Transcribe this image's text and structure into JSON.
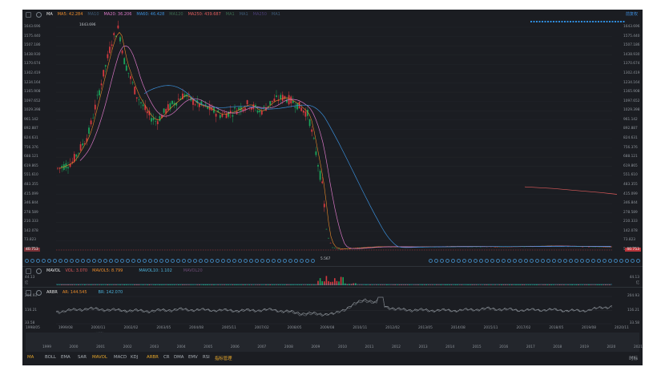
{
  "ma_bar": {
    "name": "MA",
    "ma5": "MA5: 42.284",
    "ma10": "MA10",
    "ma20": "MA20: 36.206",
    "ma60": "MA60: 46.428",
    "ma120": "MA120",
    "ma250": "MA250: 439.687",
    "ma_a": "MA1",
    "ma_b": "MA1",
    "ma_c": "MA250",
    "ma_d": "MA1",
    "top_right": "前复权"
  },
  "price_axis": [
    "1643.696",
    "1575.440",
    "1507.186",
    "1438.930",
    "1370.674",
    "1302.419",
    "1234.164",
    "1165.908",
    "1097.652",
    "1029.398",
    "961.142",
    "892.887",
    "824.631",
    "756.376",
    "688.121",
    "619.865",
    "551.610",
    "483.355",
    "415.099",
    "346.844",
    "278.589",
    "210.333",
    "142.078",
    "73.823",
    "5.567"
  ],
  "price_axis_right": [
    "1643.696",
    "1575.440",
    "1507.186",
    "1438.930",
    "1370.674",
    "1302.419",
    "1234.164",
    "1165.908",
    "1097.652",
    "1029.398",
    "961.142",
    "892.887",
    "824.631",
    "756.376",
    "688.121",
    "619.865",
    "551.610",
    "483.355",
    "415.099",
    "346.844",
    "278.589",
    "210.333",
    "142.078",
    "73.823",
    "5.567"
  ],
  "annotations": {
    "high": "1643.696",
    "low": "5.567",
    "last_badge": "40.753"
  },
  "vol_bar": {
    "name": "MAVOL",
    "vol": "VOL: 3.070",
    "mavol5": "MAVOL5: 8.799",
    "mavol10": "MAVOL10: 1.102",
    "mavol20": "MAVOL20"
  },
  "vol_axis": [
    "44.13",
    "亿"
  ],
  "arbr_bar": {
    "name": "ARBR",
    "ar": "AR: 144.545",
    "br": "BR: 142.070"
  },
  "arbr_axis": [
    "204.93",
    "116.21",
    "33.58"
  ],
  "date_axis": [
    "1998/05",
    "1999/08",
    "2000/11",
    "2002/02",
    "2003/05",
    "2004/08",
    "2005/11",
    "2007/02",
    "2008/05",
    "2009/08",
    "2010/11",
    "2012/02",
    "2013/05",
    "2014/08",
    "2015/11",
    "2017/02",
    "2018/05",
    "2019/08",
    "2020/11"
  ],
  "overview_years": [
    "1999",
    "2000",
    "2001",
    "2002",
    "2003",
    "2004",
    "2005",
    "2006",
    "2007",
    "2008",
    "2009",
    "2010",
    "2011",
    "2012",
    "2013",
    "2014",
    "2015",
    "2016",
    "2017",
    "2018",
    "2019",
    "2020",
    "2021"
  ],
  "tabs": [
    "MA",
    "BOLL",
    "EMA",
    "SAR",
    "MAVOL",
    "MACD",
    "KDJ",
    "ARBR",
    "CR",
    "DMA",
    "EMV",
    "RSI",
    "指标管理"
  ],
  "bottom_right": "时标",
  "colors": {
    "bg": "#1b1d22",
    "up": "#d6393f",
    "down": "#1aa35a",
    "ma5": "#e88a2a",
    "ma20": "#d776c4",
    "ma60": "#3a8ed8",
    "ma250": "#e05c5c",
    "accent": "#e3a52b"
  },
  "chart_data": [
    {
      "type": "line",
      "title": "",
      "x": [
        "1998/05",
        "1999/08",
        "2000/11",
        "2002/02",
        "2003/05",
        "2004/08",
        "2005/11",
        "2007/02",
        "2008/05",
        "2009/08",
        "2010/11",
        "2012/02",
        "2013/05",
        "2014/08",
        "2015/11",
        "2017/02",
        "2018/05",
        "2019/08",
        "2020/11"
      ],
      "series": [
        {
          "name": "K-line close (approx)",
          "values": [
            700,
            1250,
            1480,
            950,
            1080,
            1100,
            1030,
            1160,
            40,
            20,
            25,
            30,
            28,
            32,
            35,
            30,
            32,
            35,
            40
          ]
        },
        {
          "name": "MA60",
          "values": [
            null,
            900,
            1300,
            1050,
            1060,
            1120,
            1050,
            1080,
            650,
            150,
            30,
            28,
            28,
            30,
            32,
            31,
            31,
            33,
            38
          ]
        },
        {
          "name": "MA250",
          "values": [
            null,
            null,
            null,
            null,
            null,
            null,
            null,
            null,
            null,
            null,
            null,
            null,
            null,
            null,
            null,
            null,
            470,
            445,
            420
          ]
        }
      ],
      "ylim": [
        5.567,
        1643.696
      ]
    },
    {
      "type": "line",
      "title": "ARBR",
      "x": [
        "1998/05",
        "1999/08",
        "2000/11",
        "2002/02",
        "2003/05",
        "2004/08",
        "2005/11",
        "2007/02",
        "2008/05",
        "2009/08",
        "2010/11",
        "2012/02",
        "2013/05",
        "2014/08",
        "2015/11",
        "2017/02",
        "2018/05",
        "2019/08",
        "2020/11"
      ],
      "series": [
        {
          "name": "AR",
          "values": [
            110,
            130,
            120,
            115,
            125,
            120,
            118,
            122,
            100,
            95,
            190,
            125,
            120,
            118,
            130,
            120,
            122,
            115,
            145
          ]
        },
        {
          "name": "BR",
          "values": [
            105,
            125,
            115,
            110,
            120,
            118,
            112,
            120,
            90,
            92,
            180,
            120,
            115,
            116,
            125,
            118,
            120,
            112,
            142
          ]
        }
      ],
      "ylim": [
        33.58,
        204.93
      ]
    }
  ]
}
